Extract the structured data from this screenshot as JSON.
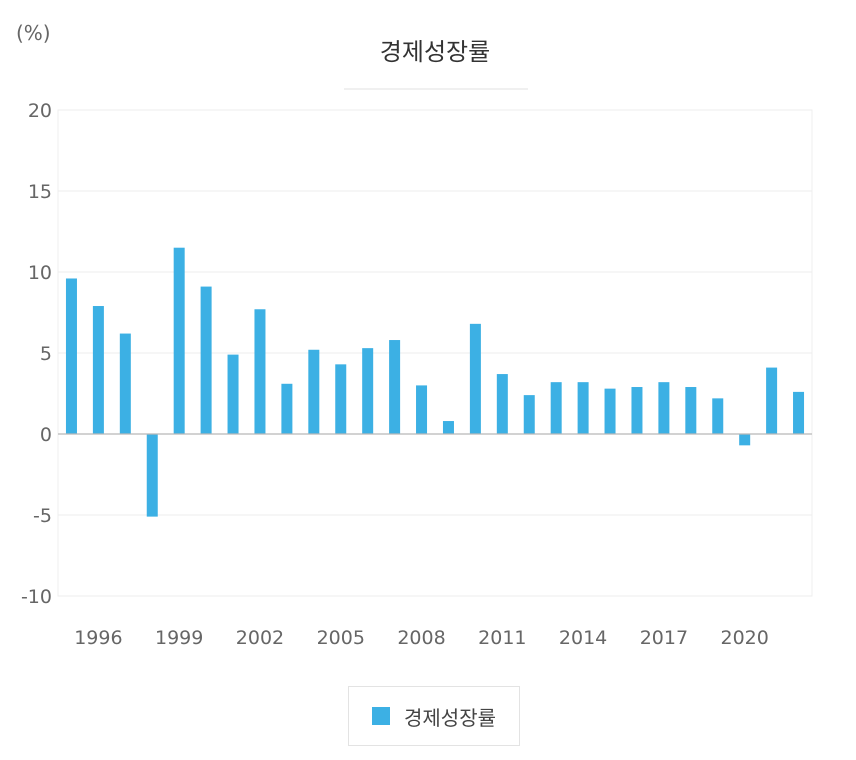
{
  "chart_data": {
    "type": "bar",
    "unit_label": "(%)",
    "title": "경제성장률",
    "x": [
      1995,
      1996,
      1997,
      1998,
      1999,
      2000,
      2001,
      2002,
      2003,
      2004,
      2005,
      2006,
      2007,
      2008,
      2009,
      2010,
      2011,
      2012,
      2013,
      2014,
      2015,
      2016,
      2017,
      2018,
      2019,
      2020,
      2021,
      2022
    ],
    "x_tick_labels": [
      "1996",
      "1999",
      "2002",
      "2005",
      "2008",
      "2011",
      "2014",
      "2017",
      "2020"
    ],
    "series": [
      {
        "name": "경제성장률",
        "color": "#3cb0e4",
        "values": [
          9.6,
          7.9,
          6.2,
          -5.1,
          11.5,
          9.1,
          4.9,
          7.7,
          3.1,
          5.2,
          4.3,
          5.3,
          5.8,
          3.0,
          0.8,
          6.8,
          3.7,
          2.4,
          3.2,
          3.2,
          2.8,
          2.9,
          3.2,
          2.9,
          2.2,
          -0.7,
          4.1,
          2.6
        ]
      }
    ],
    "ylim": [
      -10,
      20
    ],
    "y_ticks": [
      "20",
      "15",
      "10",
      "5",
      "0",
      "-5",
      "-10"
    ],
    "grid": true,
    "legend_position": "bottom"
  }
}
